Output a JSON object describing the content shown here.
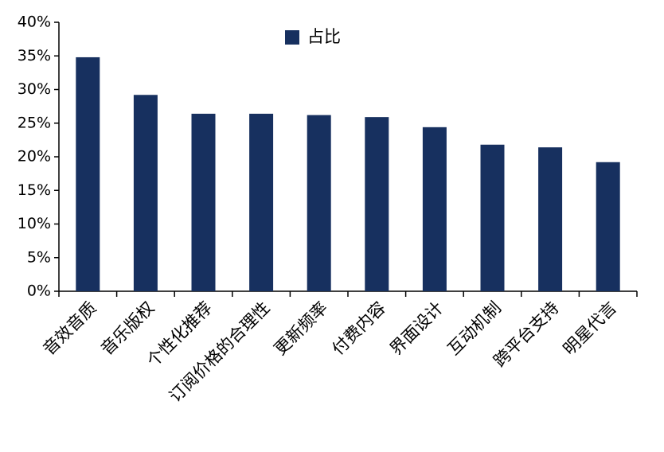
{
  "chart_data": {
    "type": "bar",
    "categories": [
      "音效音质",
      "音乐版权",
      "个性化推荐",
      "订阅价格的合理性",
      "更新频率",
      "付费内容",
      "界面设计",
      "互动机制",
      "跨平台支持",
      "明星代言"
    ],
    "series": [
      {
        "name": "占比",
        "color": "#17305f",
        "values": [
          34.8,
          29.2,
          26.4,
          26.4,
          26.2,
          25.9,
          24.4,
          21.8,
          21.4,
          19.2
        ]
      }
    ],
    "ylim": [
      0,
      40
    ],
    "yticks": [
      {
        "value": 0,
        "label": "0%"
      },
      {
        "value": 5,
        "label": "5%"
      },
      {
        "value": 10,
        "label": "10%"
      },
      {
        "value": 15,
        "label": "15%"
      },
      {
        "value": 20,
        "label": "20%"
      },
      {
        "value": 25,
        "label": "25%"
      },
      {
        "value": 30,
        "label": "30%"
      },
      {
        "value": 35,
        "label": "35%"
      },
      {
        "value": 40,
        "label": "40%"
      }
    ],
    "legend": "top"
  }
}
